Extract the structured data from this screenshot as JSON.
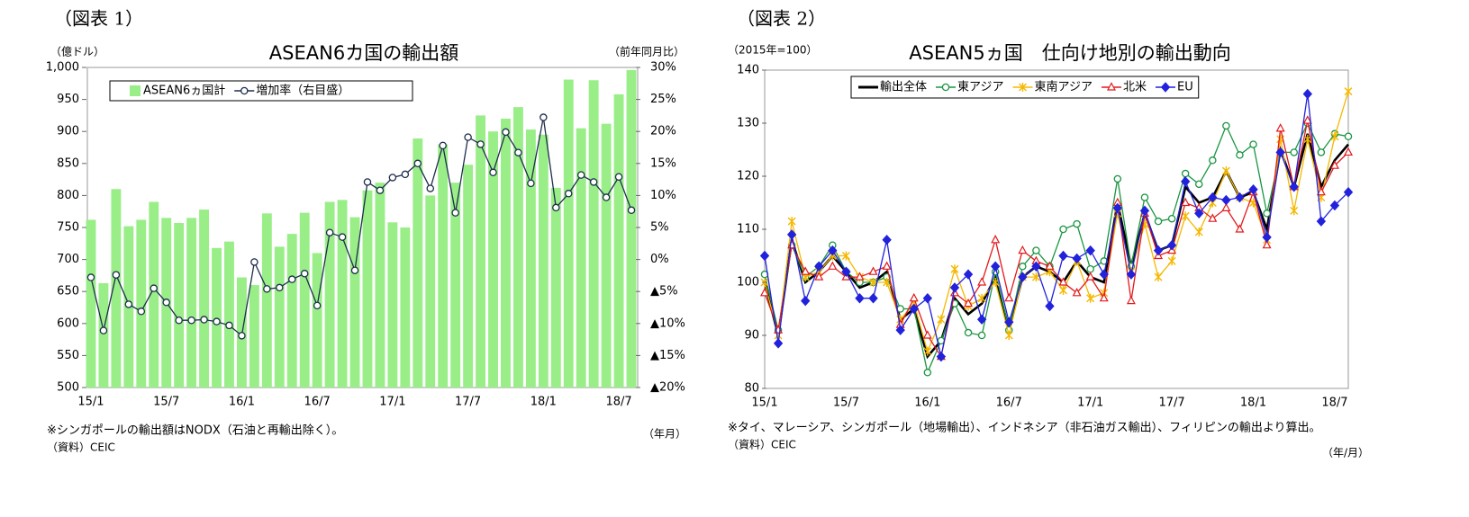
{
  "chart_data": [
    {
      "type": "bar",
      "figure_label": "（図表 1）",
      "title": "ASEAN6カ国の輸出額",
      "ylabel": "（億ドル）",
      "y2label": "（前年同月比）",
      "xlabel": "（年月）",
      "notes": "※シンガポールの輸出額はNODX（石油と再輸出除く）。",
      "source": "（資料）CEIC",
      "categories": [
        "15/1",
        null,
        null,
        null,
        null,
        null,
        "15/7",
        null,
        null,
        null,
        null,
        null,
        "16/1",
        null,
        null,
        null,
        null,
        null,
        "16/7",
        null,
        null,
        null,
        null,
        null,
        "17/1",
        null,
        null,
        null,
        null,
        null,
        "17/7",
        null,
        null,
        null,
        null,
        null,
        "18/1",
        null,
        null,
        null,
        null,
        null,
        "18/7",
        null
      ],
      "series": [
        {
          "name": "ASEAN6ヵ国計",
          "type": "bar",
          "color": "#99ee88",
          "values": [
            762,
            663,
            810,
            752,
            762,
            790,
            765,
            757,
            765,
            778,
            718,
            728,
            672,
            660,
            772,
            720,
            740,
            773,
            710,
            790,
            793,
            766,
            808,
            820,
            758,
            750,
            889,
            800,
            880,
            820,
            848,
            925,
            900,
            920,
            938,
            903,
            895,
            812,
            981,
            905,
            980,
            912,
            958,
            996
          ]
        },
        {
          "name": "増加率（右目盛）",
          "type": "line",
          "axis": "y2",
          "color": "#1f2d4d",
          "marker": "circle",
          "values": [
            -2.8,
            -11.1,
            -2.4,
            -7,
            -8.1,
            -4.5,
            -6.7,
            -9.5,
            -9.5,
            -9.4,
            -9.7,
            -10.3,
            -11.9,
            -0.4,
            -4.6,
            -4.4,
            -3.1,
            -2.2,
            -7.2,
            4.2,
            3.5,
            -1.7,
            12.1,
            10.8,
            12.8,
            13.3,
            15,
            11.1,
            17.8,
            7.3,
            19.1,
            18,
            13.6,
            19.9,
            16.7,
            11.9,
            22.2,
            8.1,
            10.3,
            13.2,
            12.1,
            9.7,
            12.9,
            7.7
          ]
        }
      ],
      "ylim": [
        500,
        1000
      ],
      "yticks": [
        500,
        550,
        600,
        650,
        700,
        750,
        800,
        850,
        900,
        950,
        {
          "value": 1000,
          "label": "1,000"
        }
      ],
      "y2lim": [
        -20,
        30
      ],
      "y2ticks": [
        {
          "value": 30,
          "label": "30%"
        },
        {
          "value": 25,
          "label": "25%"
        },
        {
          "value": 20,
          "label": "20%"
        },
        {
          "value": 15,
          "label": "15%"
        },
        {
          "value": 10,
          "label": "10%"
        },
        {
          "value": 5,
          "label": "5%"
        },
        {
          "value": 0,
          "label": "0%"
        },
        {
          "value": -5,
          "label": "▲5%"
        },
        {
          "value": -10,
          "label": "▲10%"
        },
        {
          "value": -15,
          "label": "▲15%"
        },
        {
          "value": -20,
          "label": "▲20%"
        }
      ],
      "grid": false,
      "legend": "upper left"
    },
    {
      "type": "line",
      "figure_label": "（図表 2）",
      "title": "ASEAN5ヵ国　仕向け地別の輸出動向",
      "ylabel": "（2015年=100）",
      "xlabel": "（年/月）",
      "notes": "※タイ、マレーシア、シンガポール（地場輸出）、インドネシア（非石油ガス輸出）、フィリピンの輸出より算出。",
      "source": "（資料）CEIC",
      "categories": [
        "15/1",
        null,
        null,
        null,
        null,
        null,
        "15/7",
        null,
        null,
        null,
        null,
        null,
        "16/1",
        null,
        null,
        null,
        null,
        null,
        "16/7",
        null,
        null,
        null,
        null,
        null,
        "17/1",
        null,
        null,
        null,
        null,
        null,
        "17/7",
        null,
        null,
        null,
        null,
        null,
        "18/1",
        null,
        null,
        null,
        null,
        null,
        "18/7",
        null
      ],
      "series": [
        {
          "name": "輸出全体",
          "color": "#000000",
          "values": [
            100,
            90,
            108,
            100,
            102,
            105,
            102,
            99,
            100,
            102,
            93,
            95,
            86,
            89,
            97,
            94,
            96,
            101,
            91,
            101,
            103,
            102,
            100,
            104,
            101,
            100,
            115,
            103,
            113,
            106,
            107,
            118,
            115,
            116,
            121,
            116,
            117,
            110,
            125,
            118,
            128,
            118,
            123,
            126
          ]
        },
        {
          "name": "東アジア",
          "color": "#1a9641",
          "marker": "circle",
          "values": [
            101.5,
            91,
            107,
            101,
            103,
            107,
            102,
            100,
            100,
            101,
            95,
            95,
            83,
            89,
            96,
            90.5,
            90,
            102,
            91,
            103,
            106,
            103,
            110,
            111,
            102.5,
            104,
            119.5,
            103,
            116,
            111.5,
            112,
            120.5,
            118.5,
            123,
            129.5,
            124,
            126,
            113,
            124.5,
            124.5,
            130,
            124.5,
            128,
            127.5
          ]
        },
        {
          "name": "東南アジア",
          "color": "#f5b800",
          "marker": "x",
          "values": [
            100,
            90,
            111.5,
            101,
            102,
            105,
            105,
            101,
            100,
            100,
            93,
            96,
            87,
            93,
            102.5,
            95.5,
            97,
            100,
            90,
            101,
            101,
            102,
            98.5,
            104,
            97,
            98,
            113,
            102,
            111,
            101,
            104,
            112.5,
            109.5,
            115,
            121,
            116,
            115,
            108,
            127,
            113.5,
            127,
            116,
            127.5,
            136
          ]
        },
        {
          "name": "北米",
          "color": "#e31a1c",
          "marker": "triangle",
          "values": [
            98,
            91,
            107,
            102,
            101,
            103,
            101,
            101,
            102,
            103,
            92,
            97,
            90,
            86,
            98,
            96,
            100,
            108,
            97,
            106,
            104,
            103,
            100,
            98,
            101,
            97,
            115,
            96.5,
            113,
            105,
            106,
            115,
            114,
            112,
            114,
            110,
            117,
            107,
            129,
            118,
            130.5,
            117,
            122,
            124.5
          ]
        },
        {
          "name": "EU",
          "color": "#2222dd",
          "marker": "diamond",
          "values": [
            105,
            88.5,
            109,
            96.5,
            103,
            106,
            102,
            97,
            97,
            108,
            91,
            95,
            97,
            86,
            99,
            101.5,
            93,
            103,
            92.5,
            101,
            103,
            95.5,
            105,
            104.5,
            106,
            101.5,
            114,
            101.5,
            113.5,
            106,
            107,
            119,
            113,
            116,
            115.5,
            116,
            117.5,
            108.5,
            124.5,
            118,
            135.5,
            111.5,
            114.5,
            117
          ]
        }
      ],
      "ylim": [
        80,
        140
      ],
      "yticks": [
        80,
        90,
        100,
        110,
        120,
        130,
        140
      ],
      "grid": false,
      "legend": "upper left"
    }
  ]
}
